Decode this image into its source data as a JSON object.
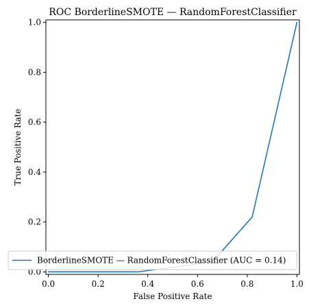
{
  "chart_data": {
    "type": "line",
    "title": "ROC BorderlineSMOTE — RandomForestClassifier",
    "xlabel": "False Positive Rate",
    "ylabel": "True Positive Rate",
    "xlim": [
      -0.01,
      1.01
    ],
    "ylim": [
      -0.01,
      1.01
    ],
    "grid": false,
    "legend_position": "lower-right",
    "x_ticks": [
      {
        "value": 0.0,
        "label": "0.0"
      },
      {
        "value": 0.2,
        "label": "0.2"
      },
      {
        "value": 0.4,
        "label": "0.4"
      },
      {
        "value": 0.6,
        "label": "0.6"
      },
      {
        "value": 0.8,
        "label": "0.8"
      },
      {
        "value": 1.0,
        "label": "1.0"
      }
    ],
    "y_ticks": [
      {
        "value": 0.0,
        "label": "0.0"
      },
      {
        "value": 0.2,
        "label": "0.2"
      },
      {
        "value": 0.4,
        "label": "0.4"
      },
      {
        "value": 0.6,
        "label": "0.6"
      },
      {
        "value": 0.8,
        "label": "0.8"
      },
      {
        "value": 1.0,
        "label": "1.0"
      }
    ],
    "series": [
      {
        "name": "BorderlineSMOTE — RandomForestClassifier (AUC = 0.14)",
        "color": "#1f77b4",
        "x": [
          0.0,
          0.36,
          0.66,
          0.82,
          1.0
        ],
        "y": [
          0.0,
          0.0,
          0.04,
          0.22,
          1.0
        ]
      }
    ]
  }
}
